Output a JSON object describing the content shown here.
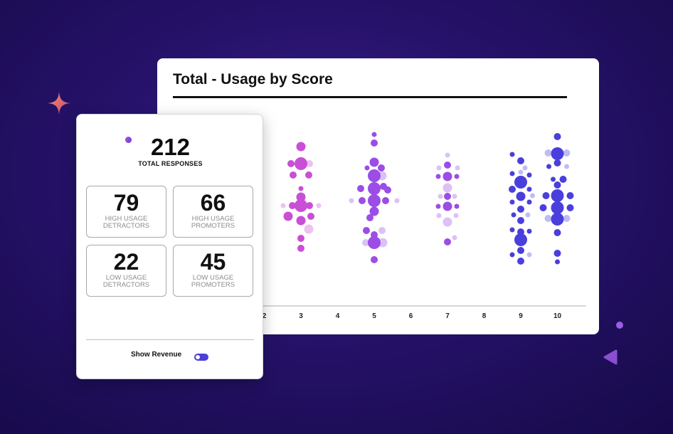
{
  "chart_card": {
    "title": "Total - Usage by Score"
  },
  "stats": {
    "total_value": "212",
    "total_label": "TOTAL RESPONSES",
    "boxes": [
      {
        "value": "79",
        "label": "HIGH USAGE DETRACTORS"
      },
      {
        "value": "66",
        "label": "HIGH USAGE PROMOTERS"
      },
      {
        "value": "22",
        "label": "LOW USAGE DETRACTORS"
      },
      {
        "value": "45",
        "label": "LOW USAGE PROMOTERS"
      }
    ],
    "revenue_label": "Show Revenue",
    "revenue_toggle_on": true
  },
  "colors": {
    "background": "#26126a",
    "detractor": "#c94fd6",
    "passive": "#9b4de6",
    "promoter": "#4a3fdc",
    "toggle": "#4a3fdc"
  },
  "chart_data": {
    "type": "scatter",
    "title": "Total - Usage by Score",
    "x_ticks": [
      "2",
      "3",
      "4",
      "5",
      "6",
      "7",
      "8",
      "9",
      "10"
    ],
    "xlabel": "",
    "ylabel": "",
    "grid": false,
    "legend": "none",
    "series": [
      {
        "score": 3,
        "color": "#c94fd6",
        "points": [
          {
            "dx": 0,
            "y": 206,
            "s": 2
          },
          {
            "dx": -14,
            "y": 230,
            "s": 1
          },
          {
            "dx": 0,
            "y": 230,
            "s": 3
          },
          {
            "dx": 12,
            "y": 230,
            "s": 1,
            "light": true
          },
          {
            "dx": -11,
            "y": 246,
            "s": 1
          },
          {
            "dx": 11,
            "y": 246,
            "s": 1
          },
          {
            "dx": 0,
            "y": 265,
            "s": 0
          },
          {
            "dx": 0,
            "y": 277,
            "s": 2
          },
          {
            "dx": -25,
            "y": 289,
            "s": 0,
            "light": true
          },
          {
            "dx": -12,
            "y": 289,
            "s": 1
          },
          {
            "dx": 0,
            "y": 289,
            "s": 3
          },
          {
            "dx": 12,
            "y": 289,
            "s": 1
          },
          {
            "dx": 25,
            "y": 289,
            "s": 0,
            "light": true
          },
          {
            "dx": -18,
            "y": 304,
            "s": 2
          },
          {
            "dx": 14,
            "y": 304,
            "s": 1
          },
          {
            "dx": 0,
            "y": 310,
            "s": 2
          },
          {
            "dx": 11,
            "y": 322,
            "s": 2,
            "light": true
          },
          {
            "dx": 0,
            "y": 335,
            "s": 1
          },
          {
            "dx": 0,
            "y": 349,
            "s": 1
          }
        ]
      },
      {
        "score": 5,
        "color": "#9b4de6",
        "points": [
          {
            "dx": 0,
            "y": 189,
            "s": 0
          },
          {
            "dx": 0,
            "y": 201,
            "s": 1
          },
          {
            "dx": 0,
            "y": 228,
            "s": 2
          },
          {
            "dx": -10,
            "y": 236,
            "s": 0
          },
          {
            "dx": 10,
            "y": 236,
            "s": 1
          },
          {
            "dx": 0,
            "y": 247,
            "s": 3
          },
          {
            "dx": 11,
            "y": 247,
            "s": 2,
            "light": true
          },
          {
            "dx": -19,
            "y": 265,
            "s": 1
          },
          {
            "dx": 0,
            "y": 265,
            "s": 3
          },
          {
            "dx": 13,
            "y": 262,
            "s": 1
          },
          {
            "dx": 19,
            "y": 267,
            "s": 1
          },
          {
            "dx": -32,
            "y": 282,
            "s": 0,
            "light": true
          },
          {
            "dx": -17,
            "y": 282,
            "s": 1
          },
          {
            "dx": 0,
            "y": 282,
            "s": 3
          },
          {
            "dx": 16,
            "y": 282,
            "s": 1
          },
          {
            "dx": 32,
            "y": 282,
            "s": 0,
            "light": true
          },
          {
            "dx": 0,
            "y": 297,
            "s": 2
          },
          {
            "dx": -6,
            "y": 306,
            "s": 1
          },
          {
            "dx": -11,
            "y": 324,
            "s": 1
          },
          {
            "dx": 11,
            "y": 324,
            "s": 1,
            "light": true
          },
          {
            "dx": 0,
            "y": 330,
            "s": 1
          },
          {
            "dx": -12,
            "y": 341,
            "s": 1,
            "light": true
          },
          {
            "dx": 0,
            "y": 341,
            "s": 3
          },
          {
            "dx": 12,
            "y": 341,
            "s": 2,
            "light": true
          },
          {
            "dx": 0,
            "y": 365,
            "s": 1
          }
        ]
      },
      {
        "score": 7,
        "color": "#9b4de6",
        "points": [
          {
            "dx": 0,
            "y": 218,
            "s": 0,
            "light": true
          },
          {
            "dx": 0,
            "y": 232,
            "s": 1
          },
          {
            "dx": -12,
            "y": 236,
            "s": 0,
            "light": true
          },
          {
            "dx": 14,
            "y": 236,
            "s": 0,
            "light": true
          },
          {
            "dx": -13,
            "y": 248,
            "s": 0
          },
          {
            "dx": 0,
            "y": 248,
            "s": 2
          },
          {
            "dx": 13,
            "y": 248,
            "s": 0
          },
          {
            "dx": 0,
            "y": 264,
            "s": 2,
            "light": true
          },
          {
            "dx": -10,
            "y": 276,
            "s": 0,
            "light": true
          },
          {
            "dx": 0,
            "y": 276,
            "s": 1
          },
          {
            "dx": 10,
            "y": 276,
            "s": 0,
            "light": true
          },
          {
            "dx": -13,
            "y": 290,
            "s": 0
          },
          {
            "dx": 0,
            "y": 290,
            "s": 2
          },
          {
            "dx": 13,
            "y": 290,
            "s": 0
          },
          {
            "dx": -12,
            "y": 303,
            "s": 0,
            "light": true
          },
          {
            "dx": 12,
            "y": 303,
            "s": 0,
            "light": true
          },
          {
            "dx": 0,
            "y": 312,
            "s": 2,
            "light": true
          },
          {
            "dx": 10,
            "y": 334,
            "s": 0,
            "light": true
          },
          {
            "dx": 0,
            "y": 340,
            "s": 1
          }
        ]
      },
      {
        "score": 9,
        "color": "#4a3fdc",
        "points": [
          {
            "dx": -12,
            "y": 217,
            "s": 0
          },
          {
            "dx": 0,
            "y": 226,
            "s": 1
          },
          {
            "dx": 6,
            "y": 236,
            "s": 0,
            "light": true
          },
          {
            "dx": -12,
            "y": 244,
            "s": 0
          },
          {
            "dx": 0,
            "y": 242,
            "s": 0,
            "light": true
          },
          {
            "dx": 12,
            "y": 246,
            "s": 0
          },
          {
            "dx": 0,
            "y": 256,
            "s": 3
          },
          {
            "dx": -12,
            "y": 266,
            "s": 1
          },
          {
            "dx": 12,
            "y": 266,
            "s": 0
          },
          {
            "dx": 0,
            "y": 276,
            "s": 2
          },
          {
            "dx": -12,
            "y": 284,
            "s": 0
          },
          {
            "dx": 12,
            "y": 284,
            "s": 0
          },
          {
            "dx": 0,
            "y": 294,
            "s": 1
          },
          {
            "dx": -10,
            "y": 302,
            "s": 0
          },
          {
            "dx": 10,
            "y": 302,
            "s": 0,
            "light": true
          },
          {
            "dx": 0,
            "y": 310,
            "s": 1
          },
          {
            "dx": -12,
            "y": 323,
            "s": 0
          },
          {
            "dx": 0,
            "y": 326,
            "s": 1
          },
          {
            "dx": 12,
            "y": 325,
            "s": 0
          },
          {
            "dx": 0,
            "y": 337,
            "s": 3
          },
          {
            "dx": 0,
            "y": 352,
            "s": 1
          },
          {
            "dx": -12,
            "y": 358,
            "s": 0
          },
          {
            "dx": 12,
            "y": 358,
            "s": 0,
            "light": true
          },
          {
            "dx": 0,
            "y": 367,
            "s": 1
          }
        ]
      },
      {
        "score": 10,
        "color": "#4a3fdc",
        "points": [
          {
            "dx": 0,
            "y": 192,
            "s": 1
          },
          {
            "dx": -13,
            "y": 215,
            "s": 1,
            "light": true
          },
          {
            "dx": 0,
            "y": 216,
            "s": 3
          },
          {
            "dx": 13,
            "y": 215,
            "s": 1,
            "light": true
          },
          {
            "dx": 0,
            "y": 229,
            "s": 1
          },
          {
            "dx": -12,
            "y": 234,
            "s": 0
          },
          {
            "dx": 13,
            "y": 234,
            "s": 0,
            "light": true
          },
          {
            "dx": -6,
            "y": 252,
            "s": 0
          },
          {
            "dx": 8,
            "y": 252,
            "s": 1
          },
          {
            "dx": 0,
            "y": 260,
            "s": 1
          },
          {
            "dx": -35,
            "y": 275,
            "s": 0,
            "light": true
          },
          {
            "dx": -16,
            "y": 275,
            "s": 1
          },
          {
            "dx": 0,
            "y": 275,
            "s": 3
          },
          {
            "dx": 18,
            "y": 275,
            "s": 1
          },
          {
            "dx": -20,
            "y": 292,
            "s": 1
          },
          {
            "dx": 0,
            "y": 292,
            "s": 3
          },
          {
            "dx": 18,
            "y": 292,
            "s": 1
          },
          {
            "dx": -13,
            "y": 307,
            "s": 1,
            "light": true
          },
          {
            "dx": 0,
            "y": 308,
            "s": 3
          },
          {
            "dx": 13,
            "y": 307,
            "s": 1,
            "light": true
          },
          {
            "dx": 0,
            "y": 327,
            "s": 1
          },
          {
            "dx": 0,
            "y": 356,
            "s": 1
          },
          {
            "dx": 0,
            "y": 368,
            "s": 0
          }
        ]
      }
    ]
  }
}
